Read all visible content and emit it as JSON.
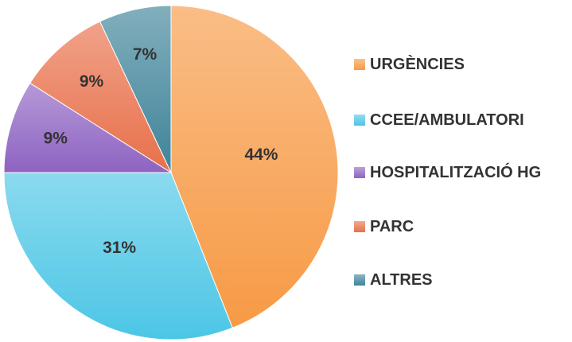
{
  "chart_data": {
    "type": "pie",
    "categories": [
      "URGÈNCIES",
      "CCEE/AMBULATORI",
      "HOSPITALITZACIÓ HG",
      "PARC",
      "ALTRES"
    ],
    "values": [
      44,
      31,
      9,
      9,
      7
    ],
    "value_labels": [
      "44%",
      "31%",
      "9%",
      "9%",
      "7%"
    ],
    "colors": [
      "#f79a45",
      "#4cc6e6",
      "#8e63c2",
      "#e8704a",
      "#3f8499"
    ],
    "legend": "right"
  }
}
